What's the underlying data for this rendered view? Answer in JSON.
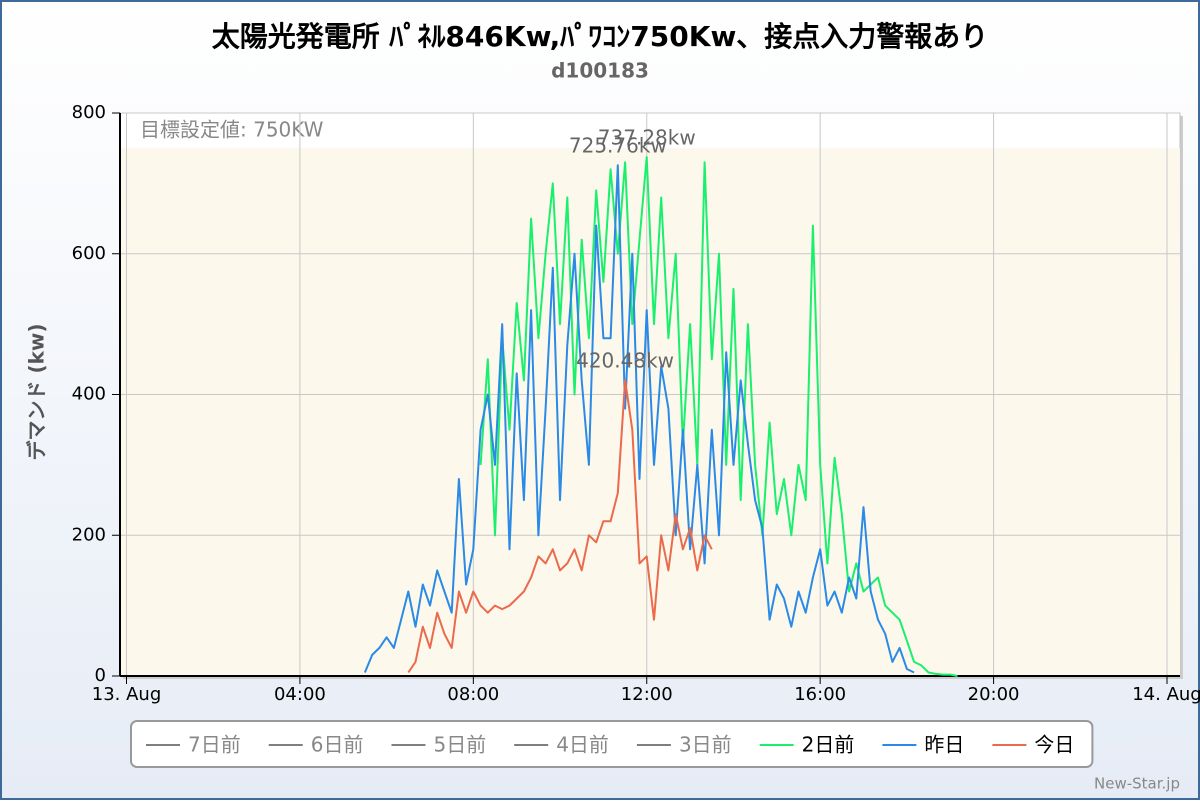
{
  "chart_data": {
    "type": "line",
    "title": "太陽光発電所 ﾊﾟﾈﾙ846Kw,ﾊﾟﾜｺﾝ750Kw、接点入力警報あり",
    "subtitle": "d100183",
    "y_label": "デマンド (kw)",
    "credit": "New-Star.jp",
    "x": [
      320,
      330,
      340,
      350,
      360,
      370,
      380,
      390,
      400,
      410,
      420,
      430,
      440,
      450,
      460,
      470,
      480,
      490,
      500,
      510,
      520,
      530,
      540,
      550,
      560,
      570,
      580,
      590,
      600,
      610,
      620,
      630,
      640,
      650,
      660,
      670,
      680,
      690,
      700,
      710,
      720,
      730,
      740,
      750,
      760,
      770,
      780,
      790,
      800,
      810,
      820,
      830,
      840,
      850,
      860,
      870,
      880,
      890,
      900,
      910,
      920,
      930,
      940,
      950,
      960,
      970,
      980,
      990,
      1000,
      1010,
      1020,
      1030,
      1040,
      1050,
      1060,
      1070,
      1080,
      1090,
      1100,
      1110,
      1120,
      1130,
      1140,
      1150,
      1160,
      1170
    ],
    "xlim": [
      -9,
      1458
    ],
    "xticks": [
      {
        "value": 0,
        "label": "13. Aug"
      },
      {
        "value": 240,
        "label": "04:00"
      },
      {
        "value": 480,
        "label": "08:00"
      },
      {
        "value": 720,
        "label": "12:00"
      },
      {
        "value": 960,
        "label": "16:00"
      },
      {
        "value": 1200,
        "label": "20:00"
      },
      {
        "value": 1440,
        "label": "14. Aug"
      }
    ],
    "ylim": [
      0,
      800
    ],
    "yticks": [
      0,
      200,
      400,
      600,
      800
    ],
    "grid": true,
    "plot_band": {
      "from": 0,
      "to": 750,
      "label": "目標設定値: 750KW",
      "color": "#fcf8ec"
    },
    "legend": "bottom",
    "series": [
      {
        "name": "7日前",
        "color": "#7f7f7f",
        "visible": false
      },
      {
        "name": "6日前",
        "color": "#7f7f7f",
        "visible": false
      },
      {
        "name": "5日前",
        "color": "#7f7f7f",
        "visible": false
      },
      {
        "name": "4日前",
        "color": "#7f7f7f",
        "visible": false
      },
      {
        "name": "3日前",
        "color": "#7f7f7f",
        "visible": false
      },
      {
        "name": "2日前",
        "color": "#1aef6e",
        "visible": true,
        "peak_label": "737.28kw",
        "values": [
          null,
          null,
          null,
          null,
          null,
          null,
          null,
          null,
          null,
          null,
          null,
          null,
          null,
          null,
          null,
          null,
          null,
          300,
          450,
          200,
          480,
          350,
          530,
          420,
          650,
          480,
          600,
          700,
          500,
          680,
          400,
          620,
          480,
          690,
          560,
          720,
          600,
          730,
          500,
          620,
          737.28,
          500,
          680,
          480,
          600,
          330,
          500,
          300,
          730,
          450,
          600,
          300,
          550,
          250,
          500,
          300,
          200,
          360,
          230,
          280,
          200,
          300,
          250,
          640,
          300,
          160,
          310,
          230,
          120,
          160,
          120,
          130,
          140,
          100,
          90,
          80,
          50,
          20,
          15,
          5,
          3,
          2,
          2,
          0,
          null,
          null
        ]
      },
      {
        "name": "昨日",
        "color": "#2a8ae6",
        "visible": true,
        "peak_label": "725.76kw",
        "values": [
          null,
          5,
          30,
          40,
          55,
          40,
          80,
          120,
          70,
          130,
          100,
          150,
          120,
          90,
          280,
          130,
          180,
          350,
          400,
          300,
          500,
          180,
          430,
          250,
          520,
          200,
          380,
          580,
          250,
          470,
          600,
          420,
          300,
          640,
          480,
          480,
          725.76,
          380,
          600,
          280,
          520,
          300,
          440,
          380,
          200,
          350,
          180,
          300,
          160,
          350,
          200,
          460,
          300,
          420,
          330,
          250,
          210,
          80,
          130,
          110,
          70,
          120,
          90,
          140,
          180,
          100,
          120,
          90,
          140,
          110,
          240,
          120,
          80,
          60,
          20,
          40,
          10,
          5,
          null,
          null,
          null,
          null,
          null,
          null,
          null,
          null
        ]
      },
      {
        "name": "今日",
        "color": "#ec6a4c",
        "visible": true,
        "peak_label": "420.48kw",
        "values": [
          null,
          null,
          null,
          null,
          null,
          null,
          null,
          5,
          20,
          70,
          40,
          90,
          60,
          40,
          120,
          90,
          120,
          100,
          90,
          100,
          95,
          100,
          110,
          120,
          140,
          170,
          160,
          180,
          150,
          160,
          180,
          150,
          200,
          190,
          220,
          220,
          260,
          420.48,
          350,
          160,
          170,
          80,
          200,
          150,
          230,
          180,
          210,
          150,
          200,
          180,
          null,
          null,
          null,
          null,
          null,
          null,
          null,
          null,
          null,
          null,
          null,
          null,
          null,
          null,
          null,
          null,
          null,
          null,
          null,
          null,
          null,
          null,
          null,
          null,
          null,
          null,
          null,
          null,
          null,
          null,
          null,
          null,
          null,
          null,
          null,
          null
        ]
      }
    ]
  }
}
